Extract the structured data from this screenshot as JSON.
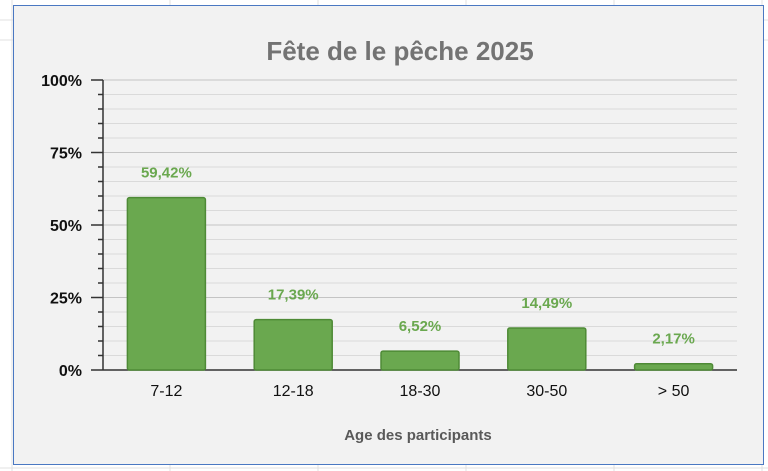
{
  "chart_data": {
    "type": "bar",
    "title": "Fête de le pêche 2025",
    "xlabel": "Age des participants",
    "ylabel": "",
    "categories": [
      "7-12",
      "12-18",
      "18-30",
      "30-50",
      "> 50"
    ],
    "values": [
      59.42,
      17.39,
      6.52,
      14.49,
      2.17
    ],
    "data_labels": [
      "59,42%",
      "17,39%",
      "6,52%",
      "14,49%",
      "2,17%"
    ],
    "ylim": [
      0,
      100
    ],
    "y_ticks": [
      0,
      25,
      50,
      75,
      100
    ],
    "y_tick_labels": [
      "0%",
      "25%",
      "50%",
      "75%",
      "100%"
    ],
    "grid": true,
    "legend": "none",
    "colors": {
      "bar": "#6aa84f",
      "bar_border": "#4e8a36",
      "data_label": "#6aa84f",
      "title": "#737373",
      "axis_title": "#595959",
      "chart_background": "#f2f2f2",
      "frame_border": "#4a78c2"
    }
  }
}
